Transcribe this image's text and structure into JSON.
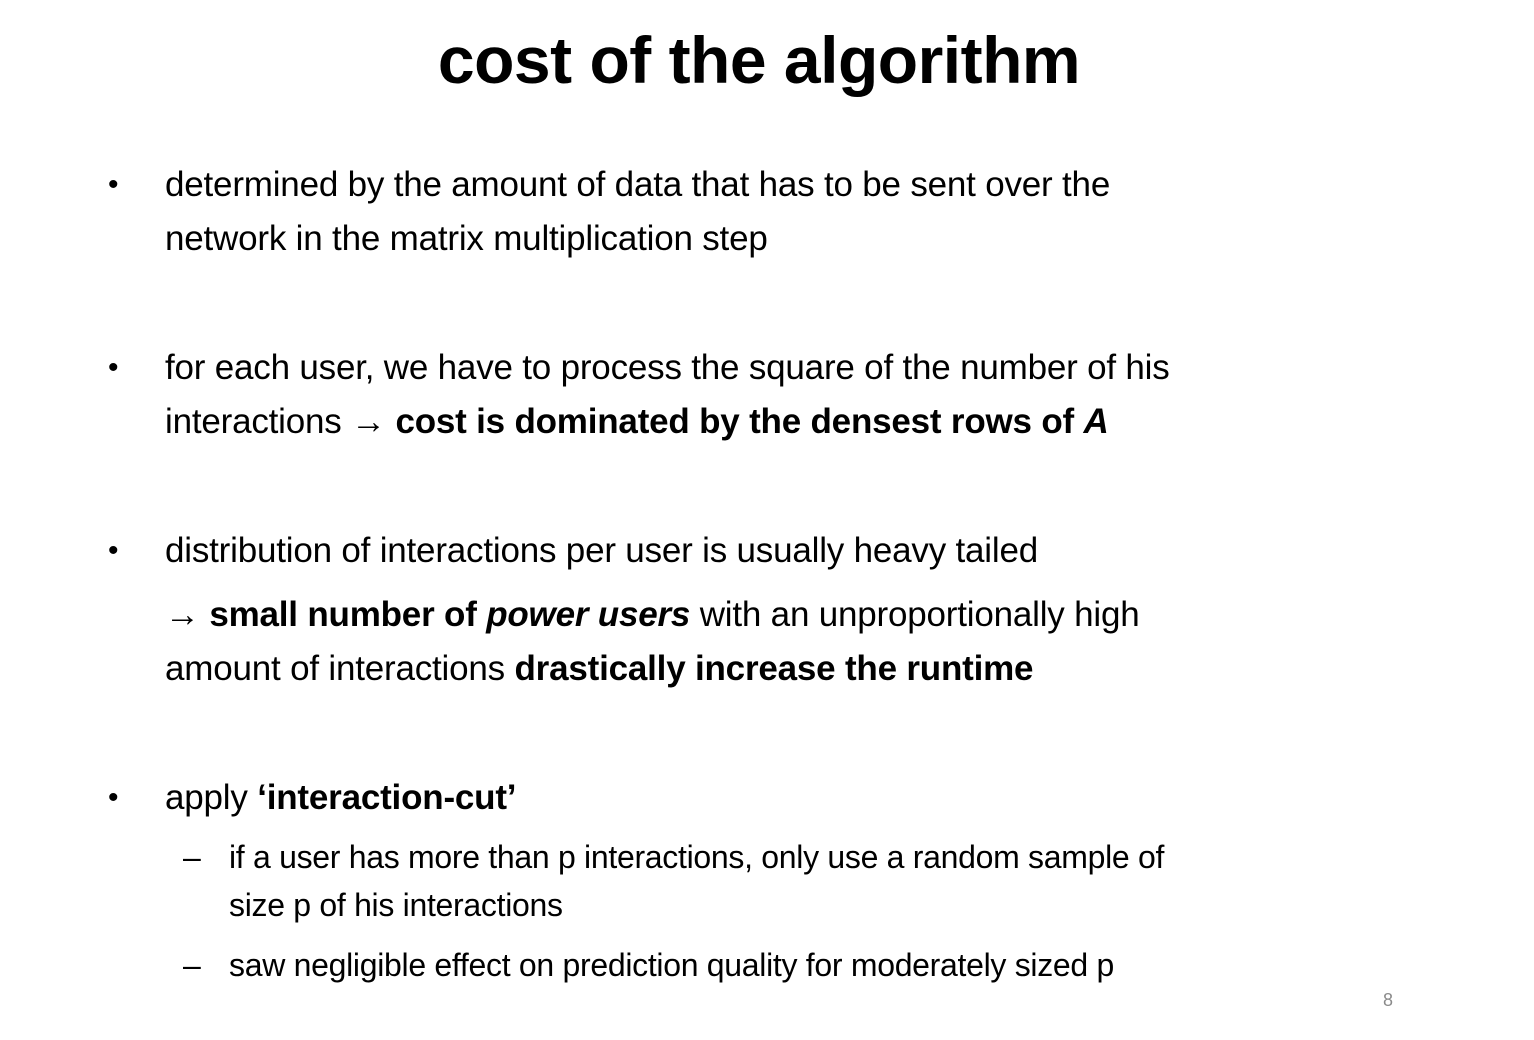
{
  "slide": {
    "title": "cost of the algorithm",
    "page_number": "8",
    "bullet_glyph": "•",
    "dash_glyph": "–",
    "bullets": [
      {
        "line1": "determined by the amount of data that has to be sent over the",
        "line2": "network in the matrix multiplication step"
      },
      {
        "line1": "for each user, we have to process the square of the number of his",
        "line2_plain": "interactions → ",
        "line2_bold": "cost is dominated by the densest rows of ",
        "line2_bold_italic": "A"
      },
      {
        "line1": "distribution of interactions per user is usually heavy tailed",
        "line2_bold_a": "→ small number of ",
        "line2_bold_italic": "power users",
        "line2_plain": " with an unproportionally high",
        "line3_plain": "amount of interactions ",
        "line3_bold": "drastically increase the runtime"
      },
      {
        "line1_plain": "apply ",
        "line1_bold": "‘interaction-cut’",
        "sub_items": [
          {
            "line1": "if a user has more than p interactions,  only use a random sample of",
            "line2": "size p of his interactions"
          },
          {
            "line1": "saw negligible effect on prediction quality for moderately sized p"
          }
        ]
      }
    ]
  }
}
